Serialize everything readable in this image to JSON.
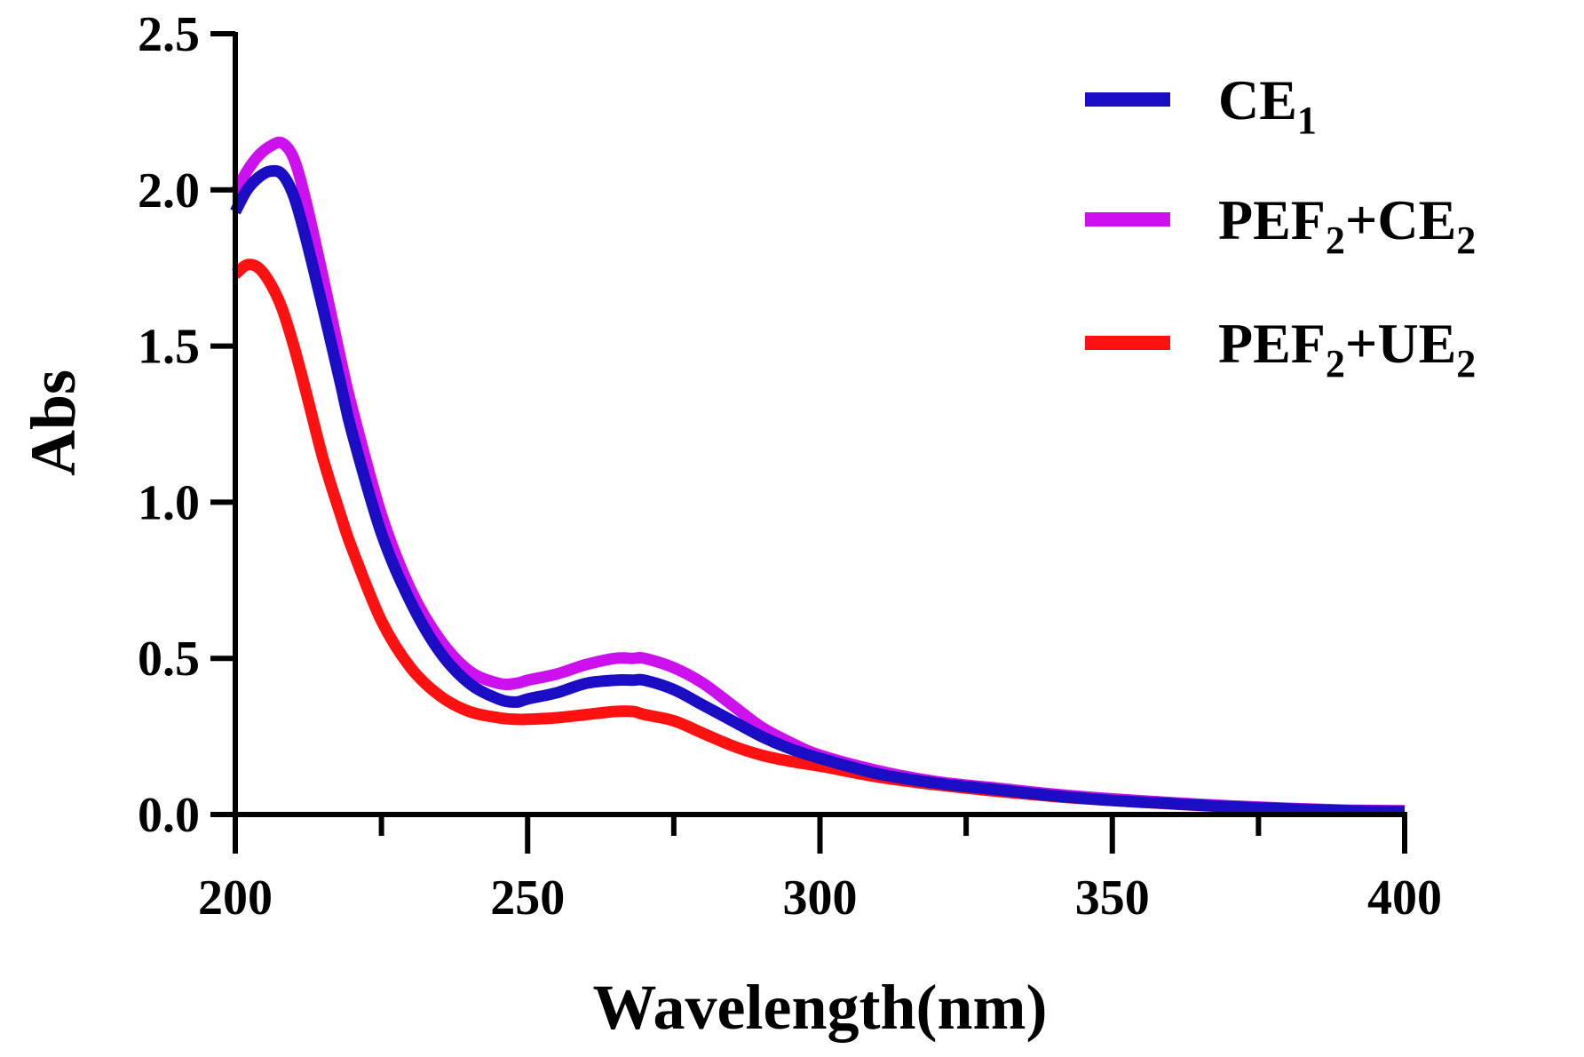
{
  "chart_data": {
    "type": "line",
    "title": "",
    "xlabel": "Wavelength(nm)",
    "ylabel": "Abs",
    "xlim": [
      200,
      400
    ],
    "ylim": [
      0,
      2.5
    ],
    "xticks": [
      200,
      250,
      300,
      350,
      400
    ],
    "xtick_labels": [
      "200",
      "250",
      "300",
      "350",
      "400"
    ],
    "xminor_ticks": [
      225,
      275,
      325,
      375
    ],
    "yticks": [
      0,
      0.5,
      1.0,
      1.5,
      2.0,
      2.5
    ],
    "ytick_labels": [
      "0.0",
      "0.5",
      "1.0",
      "1.5",
      "2.0",
      "2.5"
    ],
    "legend_position": "top-right",
    "series": [
      {
        "name": "CE1",
        "legend_main": "CE",
        "legend_sub": "1",
        "legend_tail": "",
        "color": "#1a0dc4",
        "x": [
          200,
          202,
          204,
          206,
          208,
          210,
          212,
          215,
          218,
          220,
          225,
          230,
          235,
          240,
          245,
          248,
          250,
          255,
          260,
          265,
          268,
          270,
          275,
          280,
          285,
          290,
          295,
          300,
          310,
          320,
          330,
          340,
          350,
          360,
          370,
          380,
          390,
          400
        ],
        "y": [
          1.93,
          2.0,
          2.04,
          2.06,
          2.05,
          1.98,
          1.85,
          1.62,
          1.38,
          1.22,
          0.9,
          0.68,
          0.52,
          0.42,
          0.37,
          0.36,
          0.37,
          0.39,
          0.42,
          0.43,
          0.43,
          0.43,
          0.4,
          0.35,
          0.3,
          0.25,
          0.21,
          0.18,
          0.13,
          0.1,
          0.08,
          0.06,
          0.045,
          0.035,
          0.025,
          0.018,
          0.012,
          0.01
        ]
      },
      {
        "name": "PEF2+CE2",
        "legend_main": "PEF",
        "legend_sub": "2",
        "legend_tail": "+CE",
        "legend_tail_sub": "2",
        "color": "#cc11ee",
        "x": [
          200,
          202,
          204,
          206,
          208,
          210,
          212,
          215,
          218,
          220,
          225,
          230,
          235,
          240,
          245,
          248,
          250,
          255,
          260,
          265,
          268,
          270,
          275,
          280,
          285,
          290,
          295,
          300,
          310,
          320,
          330,
          340,
          350,
          360,
          370,
          380,
          390,
          400
        ],
        "y": [
          1.99,
          2.06,
          2.11,
          2.14,
          2.15,
          2.1,
          1.97,
          1.72,
          1.46,
          1.3,
          0.96,
          0.72,
          0.56,
          0.46,
          0.42,
          0.42,
          0.43,
          0.45,
          0.48,
          0.5,
          0.5,
          0.5,
          0.47,
          0.42,
          0.35,
          0.28,
          0.23,
          0.19,
          0.14,
          0.105,
          0.085,
          0.065,
          0.05,
          0.038,
          0.028,
          0.02,
          0.014,
          0.012
        ]
      },
      {
        "name": "PEF2+UE2",
        "legend_main": "PEF",
        "legend_sub": "2",
        "legend_tail": "+UE",
        "legend_tail_sub": "2",
        "color": "#ff1111",
        "x": [
          200,
          202,
          204,
          206,
          208,
          210,
          212,
          215,
          218,
          220,
          225,
          230,
          235,
          240,
          245,
          248,
          250,
          255,
          260,
          265,
          268,
          270,
          275,
          280,
          285,
          290,
          295,
          300,
          310,
          320,
          330,
          340,
          350,
          360,
          370,
          380,
          390,
          400
        ],
        "y": [
          1.73,
          1.76,
          1.75,
          1.7,
          1.62,
          1.5,
          1.36,
          1.14,
          0.96,
          0.85,
          0.62,
          0.47,
          0.38,
          0.33,
          0.31,
          0.305,
          0.305,
          0.31,
          0.32,
          0.33,
          0.33,
          0.32,
          0.3,
          0.26,
          0.22,
          0.19,
          0.17,
          0.155,
          0.12,
          0.095,
          0.075,
          0.058,
          0.045,
          0.034,
          0.025,
          0.018,
          0.012,
          0.01
        ]
      }
    ]
  }
}
